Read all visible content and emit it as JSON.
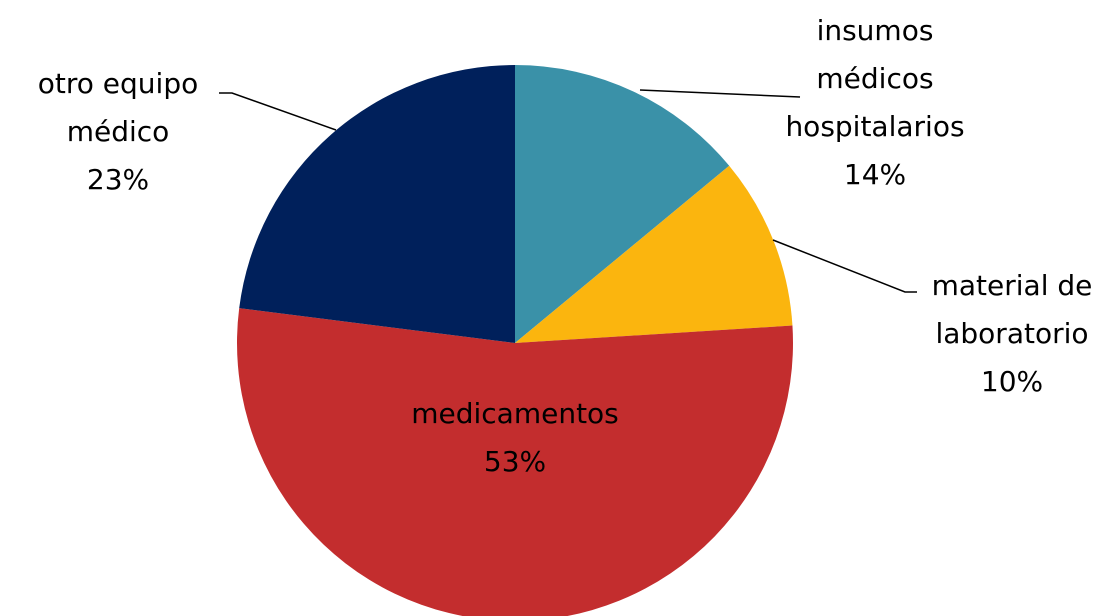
{
  "chart_data": {
    "type": "pie",
    "categories": [
      "insumos\nmédicos\nhospitalarios",
      "material de\nlaboratorio",
      "medicamentos",
      "otro equipo\nmédico"
    ],
    "values": [
      14,
      10,
      53,
      23
    ],
    "value_labels": [
      "14%",
      "10%",
      "53%",
      "23%"
    ],
    "colors": [
      "#3a91a8",
      "#fbb50e",
      "#c32d2e",
      "#00205b"
    ]
  }
}
